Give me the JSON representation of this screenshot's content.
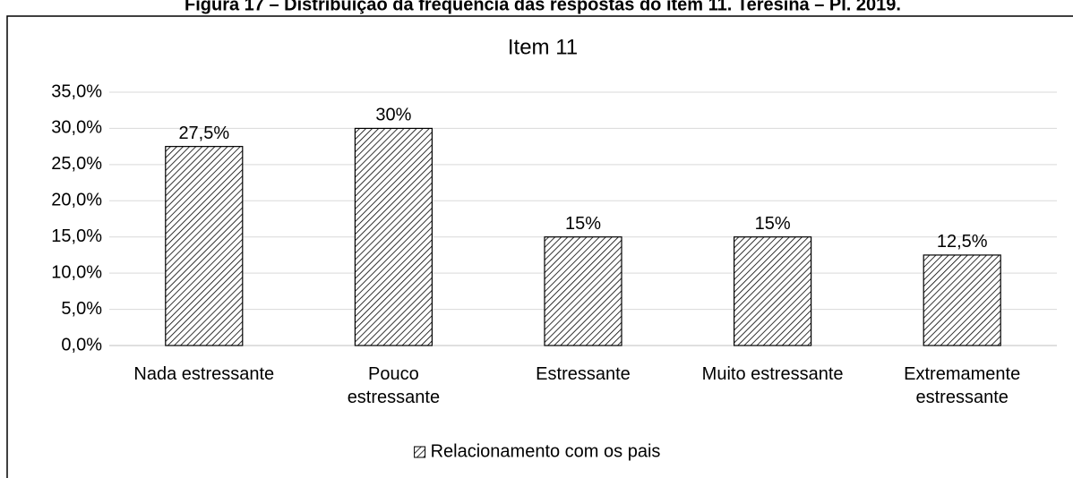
{
  "chart_data": {
    "type": "bar",
    "caption": "Figura 17 – Distribuição da frequência das respostas do item 11. Teresina – PI. 2019.",
    "title": "Item 11",
    "categories": [
      "Nada estressante",
      "Pouco\nestressante",
      "Estressante",
      "Muito estressante",
      "Extremamente\nestressante"
    ],
    "series": [
      {
        "name": "Relacionamento com os pais",
        "color": "#000000",
        "values": [
          27.5,
          30,
          15,
          15,
          12.5
        ],
        "value_labels": [
          "27,5%",
          "30%",
          "15%",
          "15%",
          "12,5%"
        ]
      }
    ],
    "ylim": [
      0,
      35
    ],
    "yticks": [
      {
        "value": 0,
        "label": "0,0%"
      },
      {
        "value": 5,
        "label": "5,0%"
      },
      {
        "value": 10,
        "label": "10,0%"
      },
      {
        "value": 15,
        "label": "15,0%"
      },
      {
        "value": 20,
        "label": "20,0%"
      },
      {
        "value": 25,
        "label": "25,0%"
      },
      {
        "value": 30,
        "label": "30,0%"
      },
      {
        "value": 35,
        "label": "35,0%"
      }
    ],
    "grid": true,
    "legend": "bottom"
  }
}
